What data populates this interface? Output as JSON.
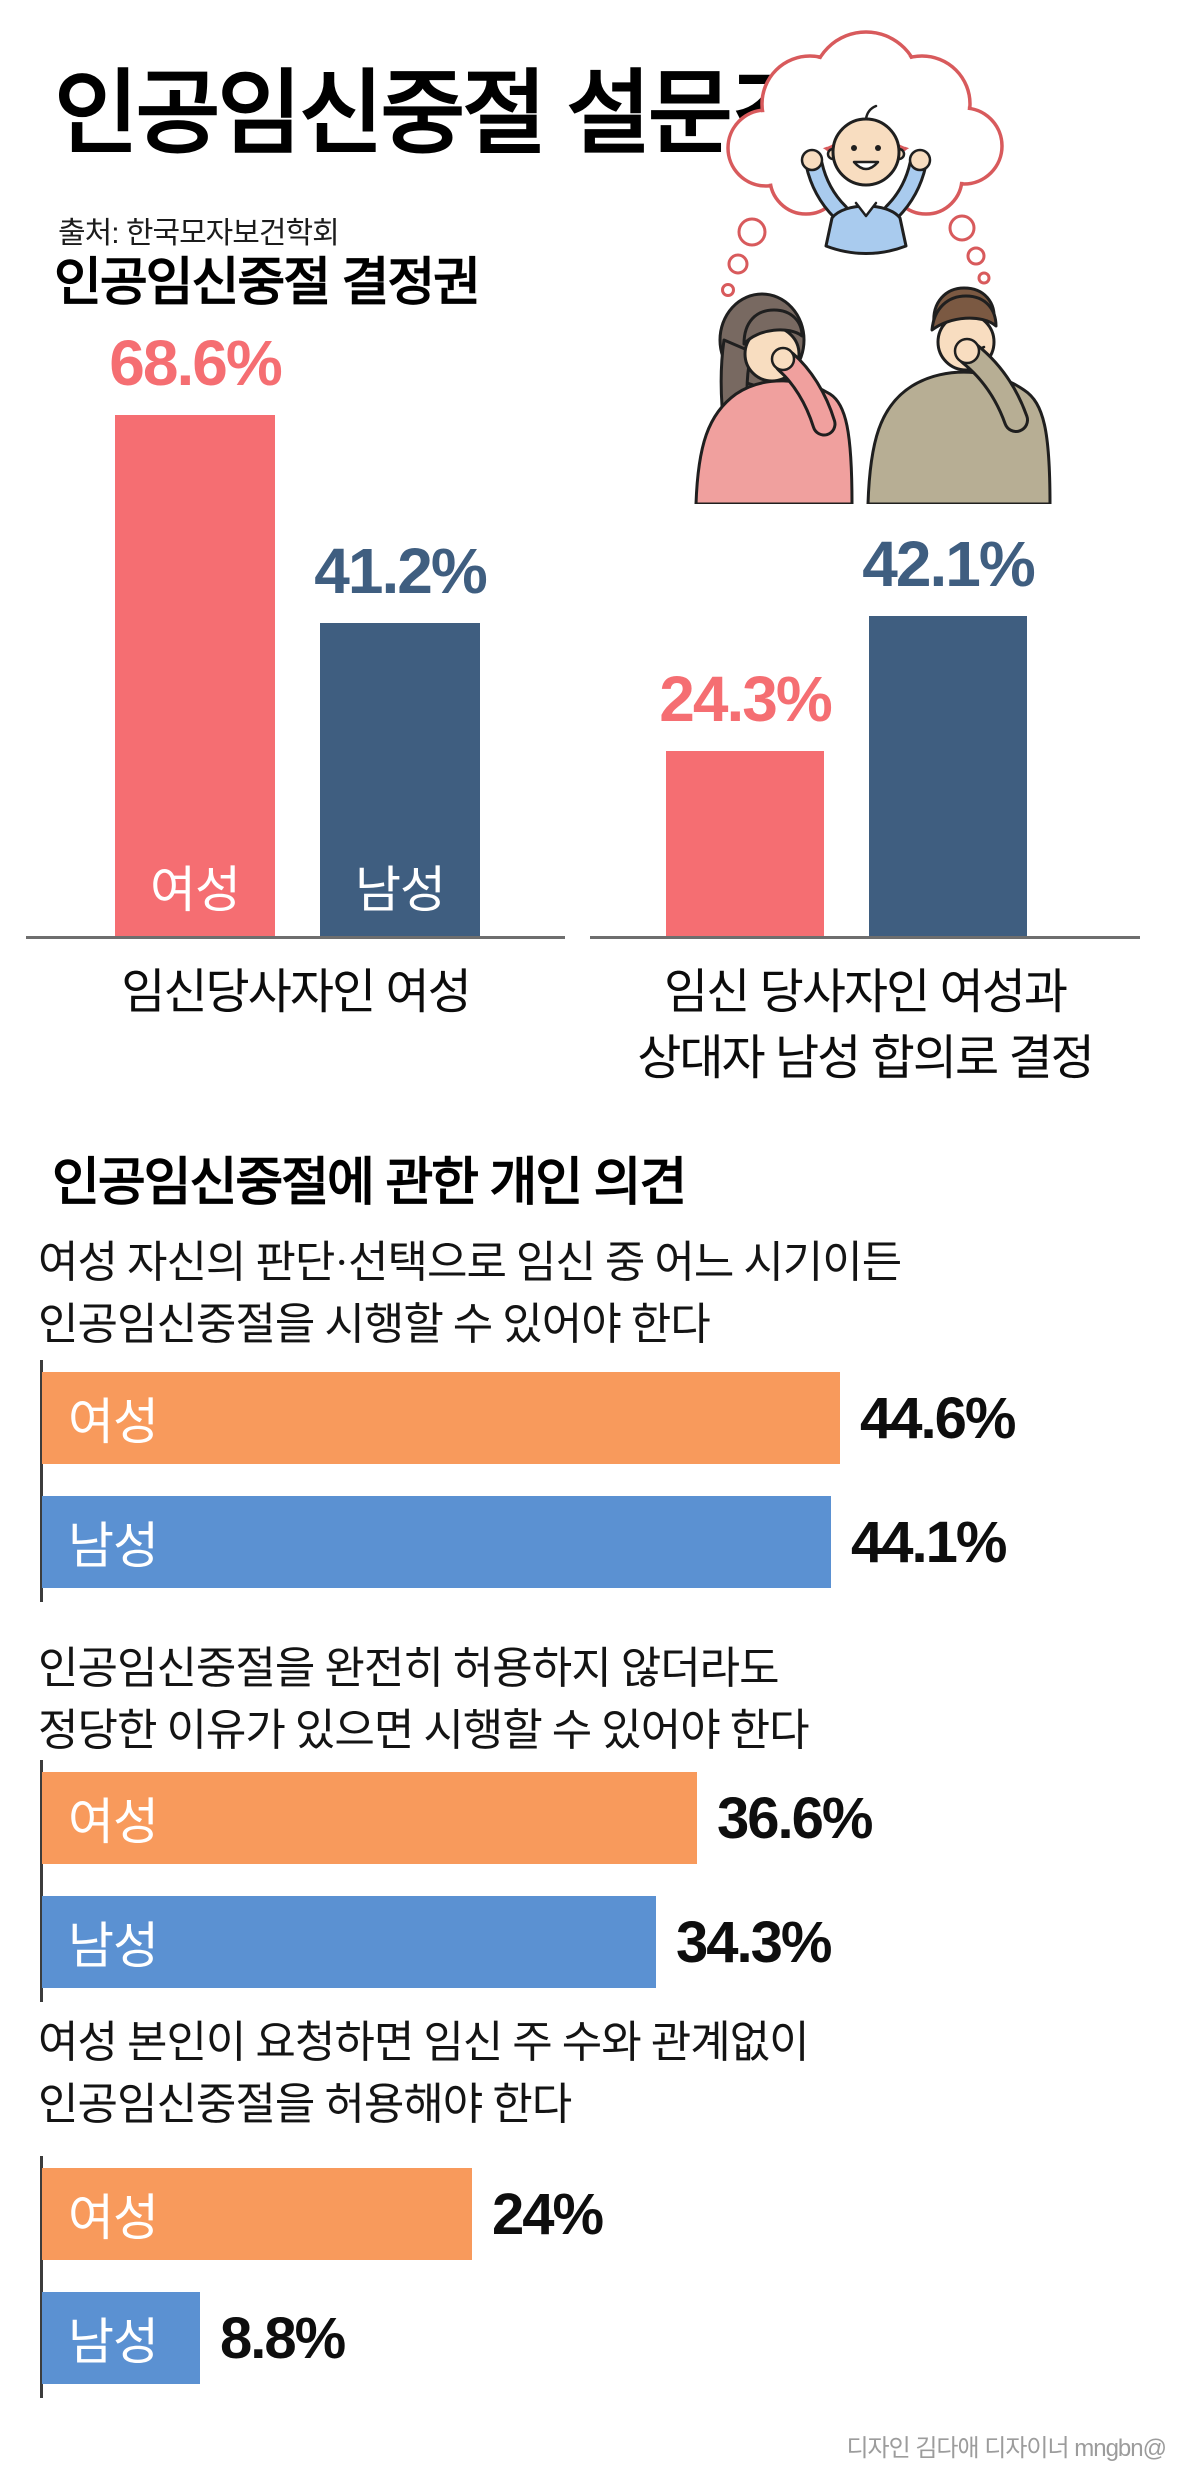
{
  "header": {
    "title": "인공임신중절 설문조사",
    "source": "출처: 한국모자보건학회",
    "illustration": "couple-worried-thinking-of-baby"
  },
  "chart_data": [
    {
      "type": "bar",
      "title": "인공임신중절 결정권",
      "unit": "%",
      "ylim": [
        0,
        75
      ],
      "series_colors": {
        "여성": "#F56E72",
        "남성": "#3F5E80"
      },
      "groups": [
        {
          "caption_lines": [
            "임신당사자인 여성"
          ],
          "bars": [
            {
              "series": "여성",
              "value": 68.6,
              "display": "68.6%",
              "color": "#F56E72",
              "label_inside": true
            },
            {
              "series": "남성",
              "value": 41.2,
              "display": "41.2%",
              "color": "#3F5E80",
              "label_inside": true
            }
          ]
        },
        {
          "caption_lines": [
            "임신 당사자인 여성과",
            "상대자 남성 합의로 결정"
          ],
          "bars": [
            {
              "series": "여성",
              "value": 24.3,
              "display": "24.3%",
              "color": "#F56E72",
              "label_inside": false
            },
            {
              "series": "남성",
              "value": 42.1,
              "display": "42.1%",
              "color": "#3F5E80",
              "label_inside": false
            }
          ]
        }
      ]
    },
    {
      "type": "bar-horizontal",
      "title": "인공임신중절에 관한 개인 의견",
      "unit": "%",
      "xlim": [
        0,
        50
      ],
      "series_colors": {
        "여성": "#F89A5C",
        "남성": "#5B91D2"
      },
      "questions": [
        {
          "text_lines": [
            "여성 자신의 판단·선택으로 임신 중 어느 시기이든",
            "인공임신중절을 시행할 수 있어야 한다"
          ],
          "bars": [
            {
              "series": "여성",
              "value": 44.6,
              "display": "44.6%",
              "color": "#F89A5C"
            },
            {
              "series": "남성",
              "value": 44.1,
              "display": "44.1%",
              "color": "#5B91D2"
            }
          ]
        },
        {
          "text_lines": [
            "인공임신중절을 완전히 허용하지 않더라도",
            "정당한 이유가 있으면 시행할 수 있어야 한다"
          ],
          "bars": [
            {
              "series": "여성",
              "value": 36.6,
              "display": "36.6%",
              "color": "#F89A5C"
            },
            {
              "series": "남성",
              "value": 34.3,
              "display": "34.3%",
              "color": "#5B91D2"
            }
          ]
        },
        {
          "text_lines": [
            "여성 본인이 요청하면 임신 주 수와 관계없이",
            "인공임신중절을 허용해야 한다"
          ],
          "bars": [
            {
              "series": "여성",
              "value": 24,
              "display": "24%",
              "color": "#F89A5C"
            },
            {
              "series": "남성",
              "value": 8.8,
              "display": "8.8%",
              "color": "#5B91D2"
            }
          ]
        }
      ]
    }
  ],
  "footer": {
    "credit": "디자인 김다애 디자이너 mngbn@"
  }
}
